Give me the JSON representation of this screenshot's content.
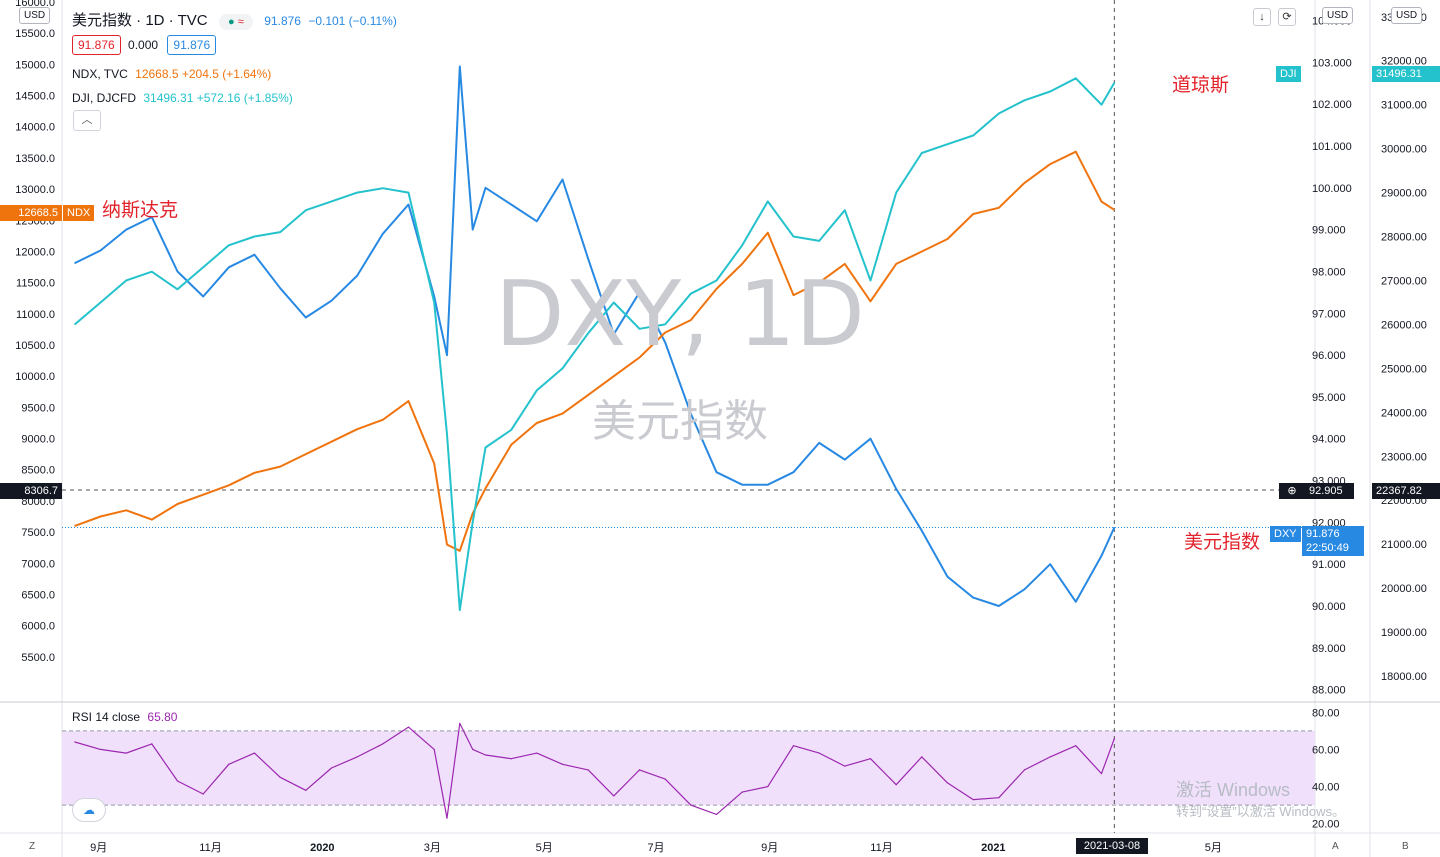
{
  "header": {
    "symbol": "美元指数 · 1D · TVC",
    "price": "91.876",
    "change": "−0.101 (−0.11%)",
    "bid": "91.876",
    "spread": "0.000",
    "ask": "91.876",
    "ndx_name": "NDX, TVC",
    "ndx_value": "12668.5 +204.5 (+1.64%)",
    "dji_name": "DJI, DJCFD",
    "dji_value": "31496.31 +572.16 (+1.85%)",
    "collapse_icon": "chevron-up-icon",
    "usd_left": "USD",
    "usd_right1": "USD",
    "usd_right2": "USD"
  },
  "watermark": {
    "main": "DXY, 1D",
    "sub": "美元指数"
  },
  "annotations": {
    "ndx": "纳斯达克",
    "dji": "道琼斯",
    "dxy": "美元指数"
  },
  "tags": {
    "ndx_value": "12668.5",
    "ndx_sym": "NDX",
    "dji_sym": "DJI",
    "dji_value": "31496.31",
    "dxy_sym": "DXY",
    "dxy_value": "91.876",
    "dxy_time": "22:50:49",
    "cross_left": "8306.7",
    "cross_mid": "92.905",
    "cross_right": "22367.82",
    "date_cursor": "2021-03-08"
  },
  "rsi_label": {
    "name": "RSI 14 close",
    "value": "65.80"
  },
  "corners": {
    "z": "Z",
    "a": "A",
    "b": "B"
  },
  "windows": {
    "line1": "激活 Windows",
    "line2": "转到“设置”以激活 Windows。"
  },
  "colors": {
    "dxy": "#2889e3",
    "ndx": "#f0740e",
    "dji": "#24c2cc",
    "rsi": "#9c27b0",
    "rsi_band": "#f0e0fb",
    "down": "#e2232b"
  },
  "chart_data": {
    "type": "line",
    "x": [
      "2019-08-19",
      "2019-09-02",
      "2019-09-16",
      "2019-09-30",
      "2019-10-14",
      "2019-10-28",
      "2019-11-11",
      "2019-11-25",
      "2019-12-09",
      "2019-12-23",
      "2020-01-06",
      "2020-01-20",
      "2020-02-03",
      "2020-02-17",
      "2020-03-02",
      "2020-03-09",
      "2020-03-16",
      "2020-03-23",
      "2020-03-30",
      "2020-04-13",
      "2020-04-27",
      "2020-05-11",
      "2020-05-25",
      "2020-06-08",
      "2020-06-22",
      "2020-07-06",
      "2020-07-20",
      "2020-08-03",
      "2020-08-17",
      "2020-08-31",
      "2020-09-14",
      "2020-09-28",
      "2020-10-12",
      "2020-10-26",
      "2020-11-09",
      "2020-11-23",
      "2020-12-07",
      "2020-12-21",
      "2021-01-04",
      "2021-01-18",
      "2021-02-01",
      "2021-02-15",
      "2021-03-01",
      "2021-03-08"
    ],
    "x_ticks": [
      "9月",
      "11月",
      "2020",
      "3月",
      "5月",
      "7月",
      "9月",
      "11月",
      "2021",
      "5月"
    ],
    "series": [
      {
        "name": "美元指数",
        "axis": "dxy",
        "values": [
          98.2,
          98.5,
          99.0,
          99.3,
          98.0,
          97.4,
          98.1,
          98.4,
          97.6,
          96.9,
          97.3,
          97.9,
          98.9,
          99.6,
          97.4,
          96.0,
          102.9,
          99.0,
          100.0,
          99.6,
          99.2,
          100.2,
          98.3,
          96.5,
          97.5,
          96.3,
          94.6,
          93.2,
          92.9,
          92.9,
          93.2,
          93.9,
          93.5,
          94.0,
          92.8,
          91.8,
          90.7,
          90.2,
          90.0,
          90.4,
          91.0,
          90.1,
          91.2,
          91.876
        ]
      },
      {
        "name": "NDX",
        "axis": "ndx",
        "values": [
          7600,
          7750,
          7850,
          7700,
          7950,
          8100,
          8250,
          8450,
          8550,
          8750,
          8950,
          9150,
          9300,
          9600,
          8600,
          7300,
          7200,
          7800,
          8200,
          8900,
          9250,
          9400,
          9700,
          10000,
          10300,
          10700,
          10900,
          11400,
          11800,
          12300,
          11300,
          11500,
          11800,
          11200,
          11800,
          12000,
          12200,
          12600,
          12700,
          13100,
          13400,
          13600,
          12800,
          12668.5
        ]
      },
      {
        "name": "DJI",
        "axis": "dji",
        "values": [
          26000,
          26500,
          27000,
          27200,
          26800,
          27300,
          27800,
          28000,
          28100,
          28600,
          28800,
          29000,
          29100,
          29000,
          26500,
          23500,
          19500,
          21500,
          23200,
          23600,
          24500,
          25000,
          25800,
          26500,
          25900,
          26000,
          26700,
          27000,
          27800,
          28800,
          28000,
          27900,
          28600,
          27000,
          29000,
          29900,
          30100,
          30300,
          30800,
          31100,
          31300,
          31600,
          31000,
          31496.31
        ]
      },
      {
        "name": "RSI 14 close",
        "axis": "rsi",
        "values": [
          64,
          60,
          58,
          63,
          43,
          36,
          52,
          58,
          45,
          38,
          50,
          56,
          63,
          72,
          60,
          23,
          74,
          60,
          57,
          55,
          58,
          52,
          49,
          35,
          49,
          44,
          30,
          25,
          37,
          40,
          62,
          58,
          51,
          55,
          41,
          56,
          42,
          33,
          34,
          49,
          56,
          62,
          47,
          65.8
        ]
      }
    ],
    "axes": {
      "ndx": {
        "ticks": [
          5500,
          6000,
          6500,
          7000,
          7500,
          8000,
          8500,
          9000,
          9500,
          10000,
          10500,
          11000,
          11500,
          12000,
          12500,
          13000,
          13500,
          14000,
          14500,
          15000,
          15500,
          16000
        ],
        "range": [
          5000,
          16000
        ]
      },
      "dxy": {
        "ticks": [
          88,
          89,
          90,
          91,
          92,
          93,
          94,
          95,
          96,
          97,
          98,
          99,
          100,
          101,
          102,
          103,
          104
        ],
        "range": [
          87.8,
          104.3
        ]
      },
      "dji": {
        "ticks": [
          18000,
          19000,
          20000,
          21000,
          22000,
          23000,
          24000,
          25000,
          26000,
          27000,
          28000,
          29000,
          30000,
          31000,
          32000,
          33000
        ],
        "range": [
          17500,
          33200
        ]
      },
      "rsi": {
        "ticks": [
          20,
          40,
          60,
          80
        ],
        "band": [
          30,
          70
        ],
        "range": [
          15,
          85
        ]
      }
    },
    "grid": false,
    "legend": "top-left"
  }
}
